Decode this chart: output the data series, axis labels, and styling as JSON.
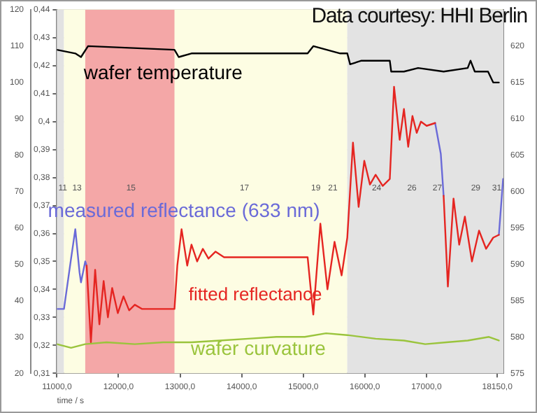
{
  "chart_data": {
    "type": "line",
    "xlabel": "time / s",
    "xlim": [
      11000,
      18250
    ],
    "xticks": [
      {
        "value": 11000,
        "label": "11000,0"
      },
      {
        "value": 12000,
        "label": "12000,0"
      },
      {
        "value": 13000,
        "label": "13000,0"
      },
      {
        "value": 14000,
        "label": "14000,0"
      },
      {
        "value": 15000,
        "label": "15000,0"
      },
      {
        "value": 16000,
        "label": "16000,0"
      },
      {
        "value": 17000,
        "label": "17000,0"
      },
      {
        "value": 18150,
        "label": "18150,0"
      }
    ],
    "ylim": [
      0.31,
      0.44
    ],
    "yticks": [
      {
        "value": 0.31,
        "label": "0,31"
      },
      {
        "value": 0.32,
        "label": "0,32"
      },
      {
        "value": 0.33,
        "label": "0,33"
      },
      {
        "value": 0.34,
        "label": "0,34"
      },
      {
        "value": 0.35,
        "label": "0,35"
      },
      {
        "value": 0.36,
        "label": "0,36"
      },
      {
        "value": 0.37,
        "label": "0,37"
      },
      {
        "value": 0.38,
        "label": "0,38"
      },
      {
        "value": 0.39,
        "label": "0,39"
      },
      {
        "value": 0.4,
        "label": "0,4"
      },
      {
        "value": 0.41,
        "label": "0,41"
      },
      {
        "value": 0.42,
        "label": "0,42"
      },
      {
        "value": 0.43,
        "label": "0,43"
      },
      {
        "value": 0.44,
        "label": "0,44"
      }
    ],
    "y2lim": [
      20,
      120
    ],
    "y2ticks": [
      20,
      30,
      40,
      50,
      60,
      70,
      80,
      90,
      100,
      110,
      120
    ],
    "y3lim": [
      575,
      625
    ],
    "y3ticks": [
      575,
      580,
      585,
      590,
      595,
      600,
      605,
      610,
      615,
      620
    ],
    "grid": true,
    "legend": false,
    "marker": "none",
    "line_style": "solid",
    "bands": [
      {
        "axis": "x",
        "from": 11000,
        "to": 11115,
        "color": "#e2e2e2"
      },
      {
        "axis": "x",
        "from": 11115,
        "to": 15715,
        "color": "#fdfde3"
      },
      {
        "axis": "x",
        "from": 11460,
        "to": 12909,
        "color": "#f4a7a7"
      },
      {
        "axis": "x",
        "from": 15715,
        "to": 18250,
        "color": "#e3e3e3"
      }
    ],
    "annotations": [
      "Data courtesy: HHI Berlin",
      "11",
      "13",
      "15",
      "17",
      "19",
      "21",
      "24",
      "26",
      "27",
      "29",
      "31"
    ],
    "series": [
      {
        "name": "wafer temperature",
        "color": "#000000",
        "axis": "y3",
        "x": [
          11000,
          11299,
          11391,
          11506,
          12909,
          12978,
          13185,
          14500,
          15071,
          15163,
          15600,
          15715,
          15761,
          15945,
          16405,
          16428,
          16635,
          16865,
          17279,
          17670,
          17716,
          17785,
          18000,
          18084,
          18176
        ],
        "values": [
          619.5,
          619,
          618.5,
          620,
          619.5,
          618.5,
          619,
          619,
          619,
          620,
          619,
          619,
          617.5,
          618,
          618,
          616.5,
          616.5,
          617,
          616.5,
          617,
          618,
          616.5,
          616.5,
          615,
          615
        ]
      },
      {
        "name": "measured reflectance (633 nm)",
        "color": "#6a6ad8",
        "axis": "y",
        "x": [
          11000,
          11115,
          11230,
          11299,
          11368,
          11391,
          11460,
          11483,
          11552,
          17141,
          17233,
          17279,
          17348,
          18176,
          18245
        ],
        "values": [
          0.333,
          0.333,
          0.351,
          0.3615,
          0.346,
          0.3425,
          0.35,
          0.3485,
          null,
          0.3995,
          0.3885,
          0.3735,
          null,
          0.3595,
          0.3795
        ]
      },
      {
        "name": "fitted reflectance",
        "color": "#e52521",
        "axis": "y",
        "x": [
          11483,
          11552,
          11621,
          11690,
          11759,
          11828,
          11897,
          11989,
          12081,
          12173,
          12265,
          12380,
          12909,
          12955,
          13024,
          13116,
          13185,
          13277,
          13369,
          13461,
          13576,
          13714,
          13875,
          15071,
          15117,
          15163,
          15278,
          15393,
          15508,
          15623,
          15715,
          15807,
          15899,
          15991,
          16083,
          16175,
          16290,
          16405,
          16474,
          16566,
          16635,
          16704,
          16773,
          16842,
          16911,
          17003,
          17141,
          null,
          17279,
          17348,
          17440,
          17532,
          17624,
          17739,
          17854,
          17969,
          18084,
          18176
        ],
        "values": [
          0.3485,
          0.321,
          0.347,
          0.3275,
          0.343,
          0.33,
          0.3405,
          0.3315,
          0.3375,
          0.3325,
          0.3345,
          0.333,
          0.333,
          0.3485,
          0.3615,
          0.3485,
          0.356,
          0.35,
          0.3545,
          0.351,
          0.3535,
          0.3515,
          0.3515,
          0.3515,
          0.341,
          0.331,
          0.3635,
          0.34,
          0.357,
          0.345,
          0.3585,
          0.3925,
          0.3695,
          0.386,
          0.3775,
          0.381,
          0.377,
          0.3795,
          0.4125,
          0.3935,
          0.4045,
          0.391,
          0.402,
          0.396,
          0.4,
          0.3985,
          0.3995,
          null,
          0.3735,
          0.341,
          0.3725,
          0.356,
          0.366,
          0.35,
          0.361,
          0.3545,
          0.3585,
          0.3595
        ]
      },
      {
        "name": "wafer curvature",
        "color": "#9ac43c",
        "axis": "y2",
        "x": [
          11000,
          11230,
          11460,
          11805,
          12265,
          12725,
          13185,
          13645,
          14105,
          14565,
          15025,
          15370,
          15715,
          16175,
          16635,
          16980,
          17325,
          17670,
          18015,
          18176
        ],
        "values": [
          28,
          27,
          28,
          28.5,
          28,
          28.5,
          28.5,
          29,
          29.5,
          30,
          30,
          31,
          30.5,
          29.5,
          29,
          28,
          28.5,
          29,
          30,
          29
        ]
      }
    ]
  }
}
